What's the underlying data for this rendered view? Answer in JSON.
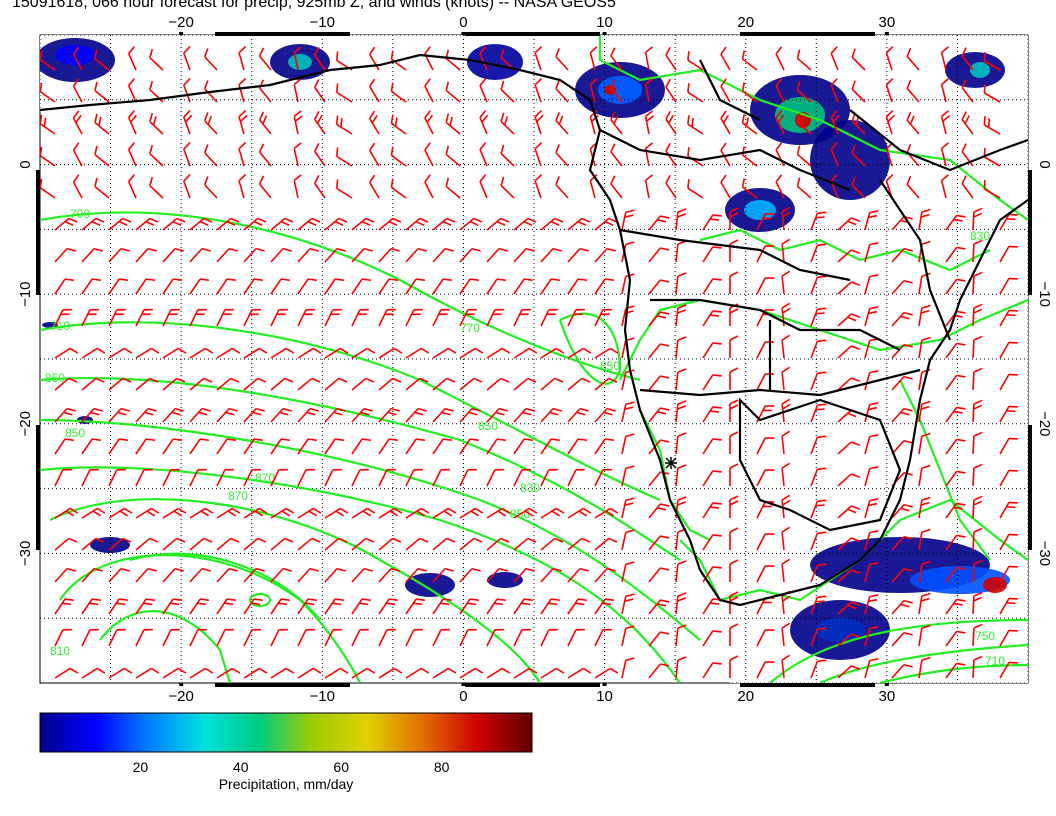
{
  "title": "15091618, 066 hour forecast for precip, 925mb Z, and winds (knots) -- NASA GEOS5",
  "map": {
    "lon_range": [
      -30,
      40
    ],
    "lat_range": [
      -40,
      10
    ],
    "lon_ticks": [
      -20,
      -10,
      0,
      10,
      20,
      30
    ],
    "lat_ticks": [
      0,
      -10,
      -20,
      -30
    ],
    "lon_tick_labels": [
      "−20",
      "−10",
      "0",
      "10",
      "20",
      "30"
    ],
    "lat_tick_labels": [
      "0",
      "−10",
      "−20",
      "−30"
    ],
    "grid": "dotted"
  },
  "contours": {
    "color": "#22ee22",
    "labels": [
      "790",
      "710",
      "850",
      "850",
      "870",
      "850",
      "870",
      "830",
      "850",
      "750",
      "710",
      "830",
      "850",
      "770",
      "810"
    ]
  },
  "wind_barbs": {
    "color": "#ff0000"
  },
  "colorbar": {
    "label": "Precipitation, mm/day",
    "ticks": [
      "20",
      "40",
      "60",
      "80"
    ],
    "tick_values": [
      20,
      40,
      60,
      80
    ],
    "range": [
      0,
      98
    ],
    "colors": [
      "#00008b",
      "#0000ff",
      "#0080ff",
      "#00e0e0",
      "#00cc80",
      "#a0cc00",
      "#e0d000",
      "#e07000",
      "#d00000",
      "#600000"
    ]
  }
}
